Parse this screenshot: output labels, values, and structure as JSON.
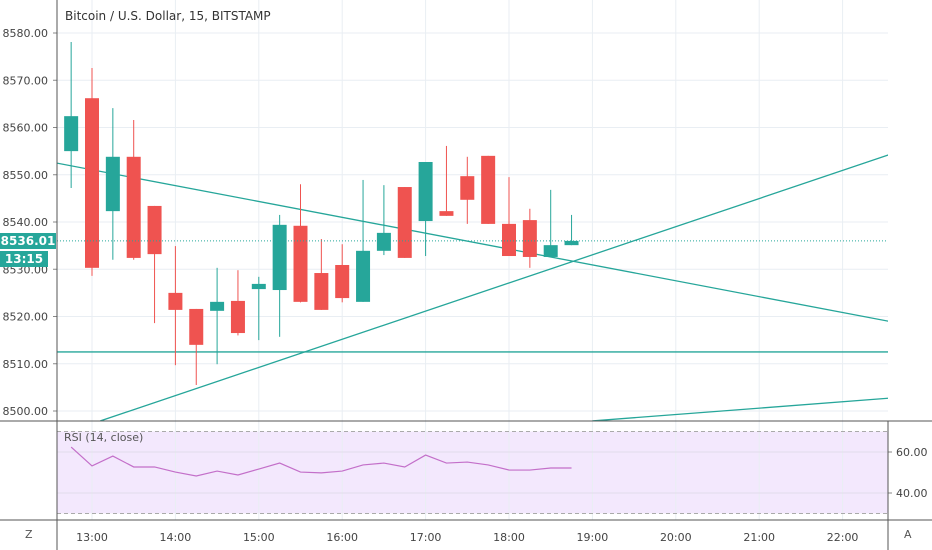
{
  "header": {
    "title": "Bitcoin / U.S. Dollar, 15, BITSTAMP"
  },
  "colors": {
    "up": "#26a69a",
    "down": "#ef5350",
    "rsi": "#c36fc9",
    "rsi_band": "#f3e8fd",
    "grid": "#e9eef3"
  },
  "current_price": {
    "price_label": "8536.01",
    "countdown_label": "13:15",
    "value": 8536.01
  },
  "rsi_panel": {
    "title": "RSI (14, close)",
    "upper_band": 70,
    "lower_band": 30
  },
  "corner_buttons": {
    "left": "Z",
    "right": "A"
  },
  "chart_data": [
    {
      "type": "candlestick",
      "title": "Bitcoin / U.S. Dollar, 15, BITSTAMP",
      "ylim": [
        8496,
        8587
      ],
      "xlim_hours": [
        12.57,
        22.55
      ],
      "y_ticks": [
        "8500.00",
        "8510.00",
        "8520.00",
        "8530.00",
        "8540.00",
        "8550.00",
        "8560.00",
        "8570.00",
        "8580.00"
      ],
      "x_ticks": [
        "13:00",
        "14:00",
        "15:00",
        "16:00",
        "17:00",
        "18:00",
        "19:00",
        "20:00",
        "21:00",
        "22:00"
      ],
      "candles": [
        {
          "t": 12.75,
          "o": 8555.0,
          "h": 8578.1,
          "l": 8547.2,
          "c": 8562.4
        },
        {
          "t": 13.0,
          "o": 8566.2,
          "h": 8572.6,
          "l": 8528.6,
          "c": 8530.3
        },
        {
          "t": 13.25,
          "o": 8542.3,
          "h": 8564.1,
          "l": 8532.0,
          "c": 8553.8
        },
        {
          "t": 13.5,
          "o": 8553.8,
          "h": 8561.6,
          "l": 8532.0,
          "c": 8532.4
        },
        {
          "t": 13.75,
          "o": 8543.4,
          "h": 8543.4,
          "l": 8518.6,
          "c": 8533.2
        },
        {
          "t": 14.0,
          "o": 8525.0,
          "h": 8534.9,
          "l": 8509.7,
          "c": 8521.4
        },
        {
          "t": 14.25,
          "o": 8521.6,
          "h": 8521.6,
          "l": 8505.5,
          "c": 8514.0
        },
        {
          "t": 14.5,
          "o": 8521.2,
          "h": 8530.3,
          "l": 8509.9,
          "c": 8523.1
        },
        {
          "t": 14.75,
          "o": 8523.3,
          "h": 8529.8,
          "l": 8516.0,
          "c": 8516.5
        },
        {
          "t": 15.0,
          "o": 8525.8,
          "h": 8528.4,
          "l": 8515.0,
          "c": 8526.9
        },
        {
          "t": 15.25,
          "o": 8525.6,
          "h": 8541.5,
          "l": 8515.7,
          "c": 8539.4
        },
        {
          "t": 15.5,
          "o": 8539.2,
          "h": 8548.0,
          "l": 8523.0,
          "c": 8523.1
        },
        {
          "t": 15.75,
          "o": 8529.2,
          "h": 8536.4,
          "l": 8521.4,
          "c": 8521.4
        },
        {
          "t": 16.0,
          "o": 8530.9,
          "h": 8535.3,
          "l": 8523.0,
          "c": 8523.9
        },
        {
          "t": 16.25,
          "o": 8523.1,
          "h": 8548.9,
          "l": 8523.1,
          "c": 8533.9
        },
        {
          "t": 16.5,
          "o": 8533.9,
          "h": 8547.8,
          "l": 8533.0,
          "c": 8537.7
        },
        {
          "t": 16.75,
          "o": 8547.4,
          "h": 8547.4,
          "l": 8532.4,
          "c": 8532.4
        },
        {
          "t": 17.0,
          "o": 8540.2,
          "h": 8552.7,
          "l": 8532.8,
          "c": 8552.7
        },
        {
          "t": 17.25,
          "o": 8542.3,
          "h": 8556.1,
          "l": 8541.3,
          "c": 8541.3
        },
        {
          "t": 17.5,
          "o": 8549.7,
          "h": 8553.8,
          "l": 8539.6,
          "c": 8544.7
        },
        {
          "t": 17.75,
          "o": 8554.0,
          "h": 8554.0,
          "l": 8539.6,
          "c": 8539.6
        },
        {
          "t": 18.0,
          "o": 8539.6,
          "h": 8549.5,
          "l": 8532.8,
          "c": 8532.8
        },
        {
          "t": 18.25,
          "o": 8540.4,
          "h": 8542.8,
          "l": 8530.3,
          "c": 8532.6
        },
        {
          "t": 18.5,
          "o": 8532.6,
          "h": 8546.8,
          "l": 8532.6,
          "c": 8535.1
        },
        {
          "t": 18.75,
          "o": 8535.1,
          "h": 8541.5,
          "l": 8535.1,
          "c": 8536.0
        }
      ],
      "trendlines": [
        {
          "t1": 12.57,
          "p1": 8552.5,
          "t2": 22.55,
          "p2": 8519.0
        },
        {
          "t1": 13.1,
          "p1": 8497.9,
          "t2": 22.55,
          "p2": 8554.2
        },
        {
          "t1": 12.57,
          "p1": 8512.5,
          "t2": 22.55,
          "p2": 8512.5
        },
        {
          "t1": 19.0,
          "p1": 8497.9,
          "t2": 22.55,
          "p2": 8502.7
        }
      ]
    },
    {
      "type": "line",
      "title": "RSI (14, close)",
      "ylim": [
        27,
        73
      ],
      "y_ticks": [
        "40.00",
        "60.00"
      ],
      "t": [
        12.75,
        13.0,
        13.25,
        13.5,
        13.75,
        14.0,
        14.25,
        14.5,
        14.75,
        15.0,
        15.25,
        15.5,
        15.75,
        16.0,
        16.25,
        16.5,
        16.75,
        17.0,
        17.25,
        17.5,
        17.75,
        18.0,
        18.25,
        18.5,
        18.75
      ],
      "values": [
        62.4,
        53.2,
        58.0,
        52.7,
        52.7,
        50.2,
        48.3,
        50.7,
        48.8,
        51.7,
        54.6,
        50.2,
        49.8,
        50.7,
        53.7,
        54.6,
        52.7,
        58.5,
        54.6,
        55.1,
        53.7,
        51.2,
        51.2,
        52.2,
        52.2
      ]
    }
  ]
}
